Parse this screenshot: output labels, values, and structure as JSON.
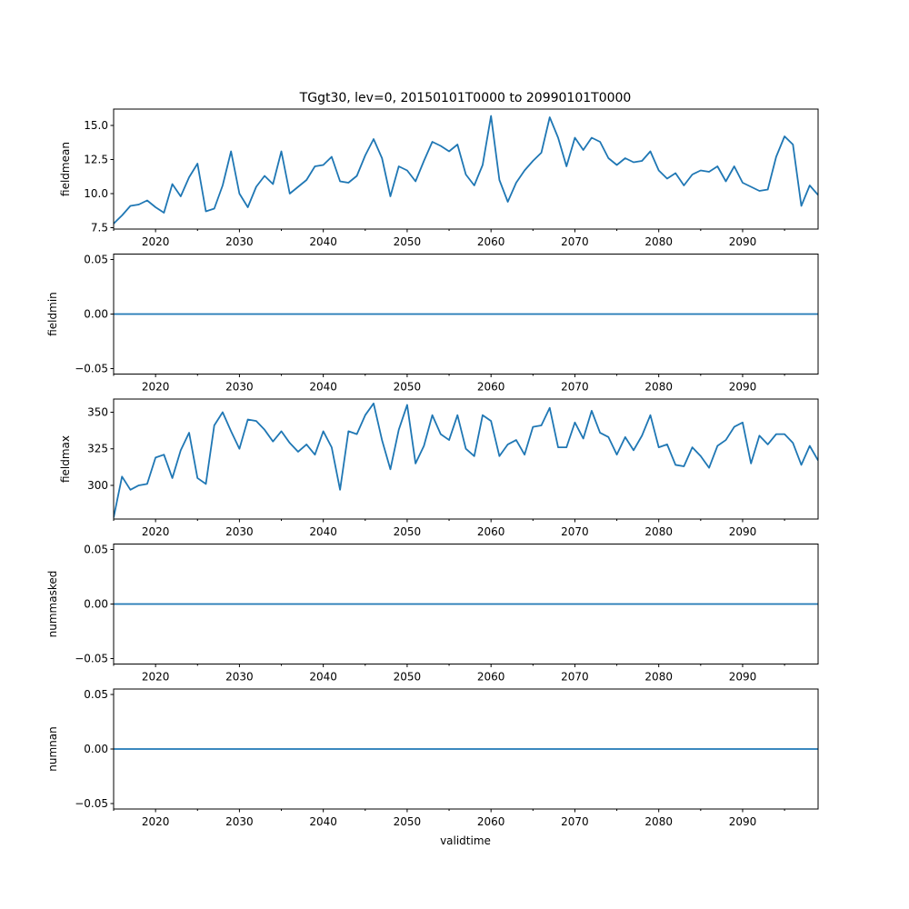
{
  "title": "TGgt30, lev=0, 20150101T0000 to 20990101T0000",
  "xlabel": "validtime",
  "line_color": "#1f77b4",
  "chart_data": [
    {
      "type": "line",
      "ylabel": "fieldmean",
      "xlim": [
        2015,
        2099
      ],
      "ylim": [
        7.4,
        16.2
      ],
      "xticks": [
        2020,
        2030,
        2040,
        2050,
        2060,
        2070,
        2080,
        2090
      ],
      "xtick_labels": [
        "2020",
        "2030",
        "2040",
        "2050",
        "2060",
        "2070",
        "2080",
        "2090"
      ],
      "yticks": [
        7.5,
        10.0,
        12.5,
        15.0
      ],
      "ytick_labels": [
        "7.5",
        "10.0",
        "12.5",
        "15.0"
      ],
      "x_start": 2015,
      "values": [
        7.8,
        8.4,
        9.1,
        9.2,
        9.5,
        9.0,
        8.6,
        10.7,
        9.8,
        11.2,
        12.2,
        8.7,
        8.9,
        10.6,
        13.1,
        10.0,
        9.0,
        10.5,
        11.3,
        10.7,
        13.1,
        10.0,
        10.5,
        11.0,
        12.0,
        12.1,
        12.7,
        10.9,
        10.8,
        11.3,
        12.8,
        14.0,
        12.6,
        9.8,
        12.0,
        11.7,
        10.9,
        12.4,
        13.8,
        13.5,
        13.1,
        13.6,
        11.4,
        10.6,
        12.1,
        15.7,
        11.0,
        9.4,
        10.8,
        11.7,
        12.4,
        13.0,
        15.6,
        14.1,
        12.0,
        14.1,
        13.2,
        14.1,
        13.8,
        12.6,
        12.1,
        12.6,
        12.3,
        12.4,
        13.1,
        11.7,
        11.1,
        11.5,
        10.6,
        11.4,
        11.7,
        11.6,
        12.0,
        10.9,
        12.0,
        10.8,
        10.5,
        10.2,
        10.3,
        12.7,
        14.2,
        13.6,
        9.1,
        10.6,
        9.9
      ]
    },
    {
      "type": "line",
      "ylabel": "fieldmin",
      "xlim": [
        2015,
        2099
      ],
      "ylim": [
        -0.055,
        0.055
      ],
      "xticks": [
        2020,
        2030,
        2040,
        2050,
        2060,
        2070,
        2080,
        2090
      ],
      "xtick_labels": [
        "2020",
        "2030",
        "2040",
        "2050",
        "2060",
        "2070",
        "2080",
        "2090"
      ],
      "yticks": [
        -0.05,
        0.0,
        0.05
      ],
      "ytick_labels": [
        "−0.05",
        "0.00",
        "0.05"
      ],
      "x_start": 2015,
      "constant": 0.0,
      "n_points": 85
    },
    {
      "type": "line",
      "ylabel": "fieldmax",
      "xlim": [
        2015,
        2099
      ],
      "ylim": [
        277,
        359
      ],
      "xticks": [
        2020,
        2030,
        2040,
        2050,
        2060,
        2070,
        2080,
        2090
      ],
      "xtick_labels": [
        "2020",
        "2030",
        "2040",
        "2050",
        "2060",
        "2070",
        "2080",
        "2090"
      ],
      "yticks": [
        300,
        325,
        350
      ],
      "ytick_labels": [
        "300",
        "325",
        "350"
      ],
      "x_start": 2015,
      "values": [
        278,
        306,
        297,
        300,
        301,
        319,
        321,
        305,
        324,
        336,
        305,
        301,
        341,
        350,
        337,
        325,
        345,
        344,
        338,
        330,
        337,
        329,
        323,
        328,
        321,
        337,
        326,
        297,
        337,
        335,
        348,
        356,
        331,
        311,
        338,
        355,
        315,
        327,
        348,
        335,
        331,
        348,
        325,
        320,
        348,
        344,
        320,
        328,
        331,
        321,
        340,
        341,
        353,
        326,
        326,
        343,
        332,
        351,
        336,
        333,
        321,
        333,
        324,
        334,
        348,
        326,
        328,
        314,
        313,
        326,
        320,
        312,
        327,
        331,
        340,
        343,
        315,
        334,
        328,
        335,
        335,
        329,
        314,
        327,
        317
      ]
    },
    {
      "type": "line",
      "ylabel": "nummasked",
      "xlim": [
        2015,
        2099
      ],
      "ylim": [
        -0.055,
        0.055
      ],
      "xticks": [
        2020,
        2030,
        2040,
        2050,
        2060,
        2070,
        2080,
        2090
      ],
      "xtick_labels": [
        "2020",
        "2030",
        "2040",
        "2050",
        "2060",
        "2070",
        "2080",
        "2090"
      ],
      "yticks": [
        -0.05,
        0.0,
        0.05
      ],
      "ytick_labels": [
        "−0.05",
        "0.00",
        "0.05"
      ],
      "x_start": 2015,
      "constant": 0.0,
      "n_points": 85
    },
    {
      "type": "line",
      "ylabel": "numnan",
      "xlim": [
        2015,
        2099
      ],
      "ylim": [
        -0.055,
        0.055
      ],
      "xticks": [
        2020,
        2030,
        2040,
        2050,
        2060,
        2070,
        2080,
        2090
      ],
      "xtick_labels": [
        "2020",
        "2030",
        "2040",
        "2050",
        "2060",
        "2070",
        "2080",
        "2090"
      ],
      "yticks": [
        -0.05,
        0.0,
        0.05
      ],
      "ytick_labels": [
        "−0.05",
        "0.00",
        "0.05"
      ],
      "x_start": 2015,
      "constant": 0.0,
      "n_points": 85
    }
  ]
}
